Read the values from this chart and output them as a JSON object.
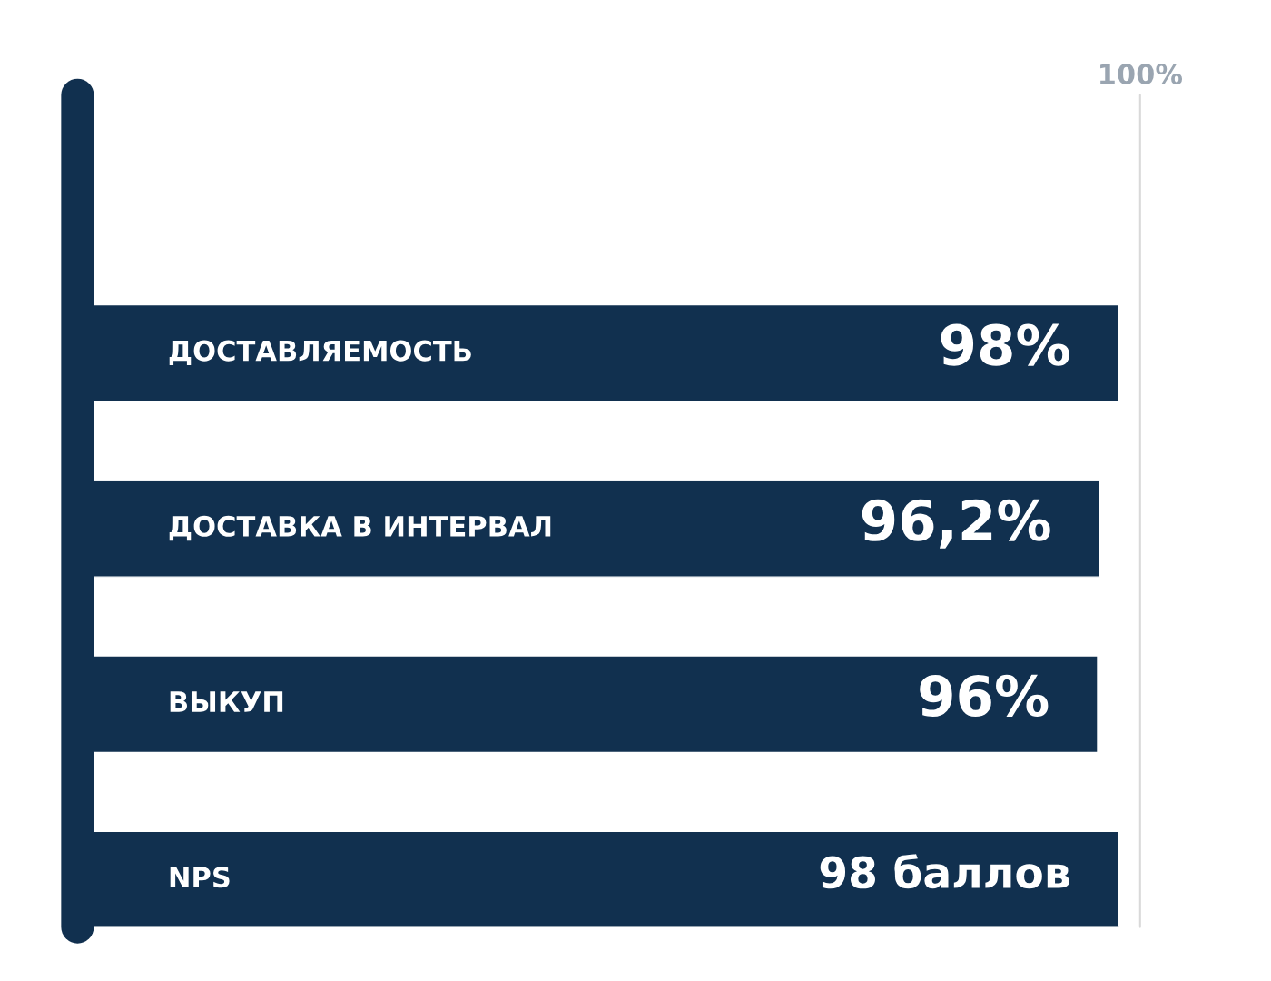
{
  "chart_data": {
    "type": "bar",
    "orientation": "horizontal",
    "categories": [
      "ДОСТАВЛЯЕМОСТЬ",
      "ДОСТАВКА В ИНТЕРВАЛ",
      "ВЫКУП",
      "NPS"
    ],
    "values": [
      98,
      96.2,
      96,
      98
    ],
    "value_labels": [
      "98%",
      "96,2%",
      "96%",
      "98 баллов"
    ],
    "color": "#11304f",
    "xlim": [
      0,
      100
    ],
    "ref_lines": [
      {
        "axis": "x",
        "value": 100,
        "label": "100%",
        "color": "#d9d9d9"
      }
    ],
    "legend": false,
    "tick_labels": false
  }
}
